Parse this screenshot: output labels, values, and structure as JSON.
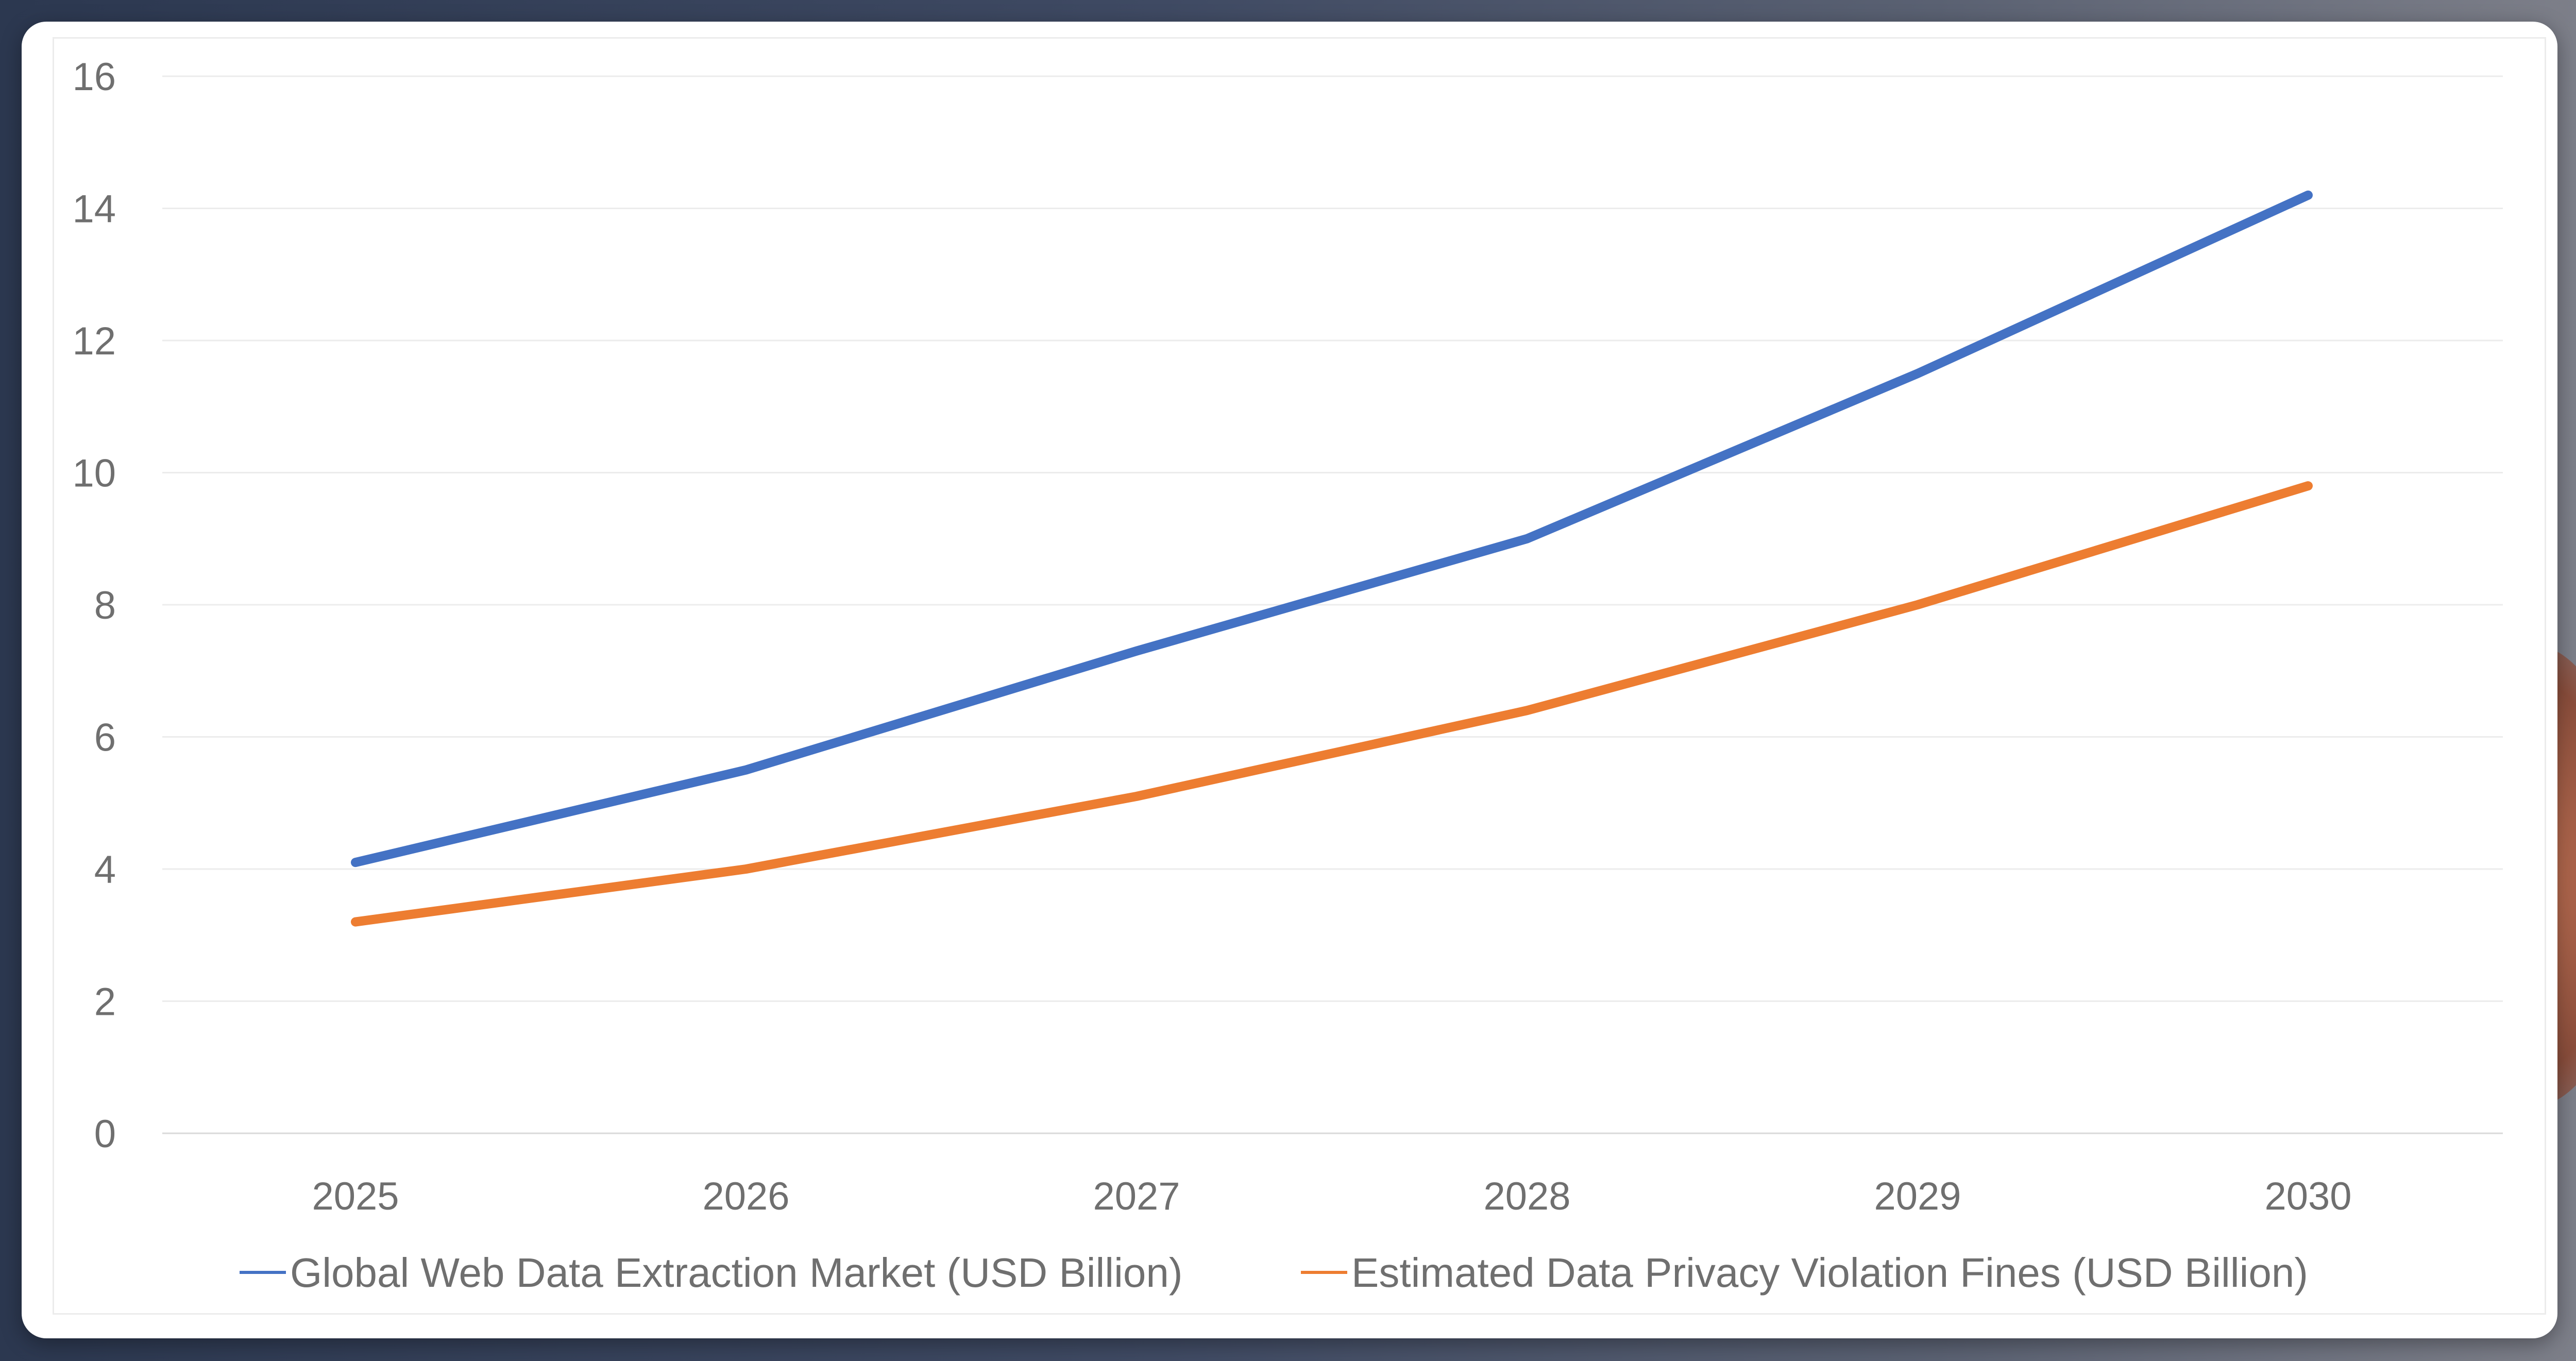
{
  "chart_data": {
    "type": "line",
    "title": "",
    "xlabel": "",
    "ylabel": "",
    "categories": [
      "2025",
      "2026",
      "2027",
      "2028",
      "2029",
      "2030"
    ],
    "ylim": [
      0,
      16
    ],
    "yticks": [
      "0",
      "2",
      "4",
      "6",
      "8",
      "10",
      "12",
      "14",
      "16"
    ],
    "grid": true,
    "legend_position": "bottom",
    "series": [
      {
        "name": "Global Web Data Extraction Market (USD Billion)",
        "color": "#4472c4",
        "values": [
          4.1,
          5.5,
          7.3,
          9.0,
          11.5,
          14.2
        ]
      },
      {
        "name": "Estimated Data Privacy Violation Fines (USD Billion)",
        "color": "#ed7d31",
        "values": [
          3.2,
          4.0,
          5.1,
          6.4,
          8.0,
          9.8
        ]
      }
    ]
  }
}
